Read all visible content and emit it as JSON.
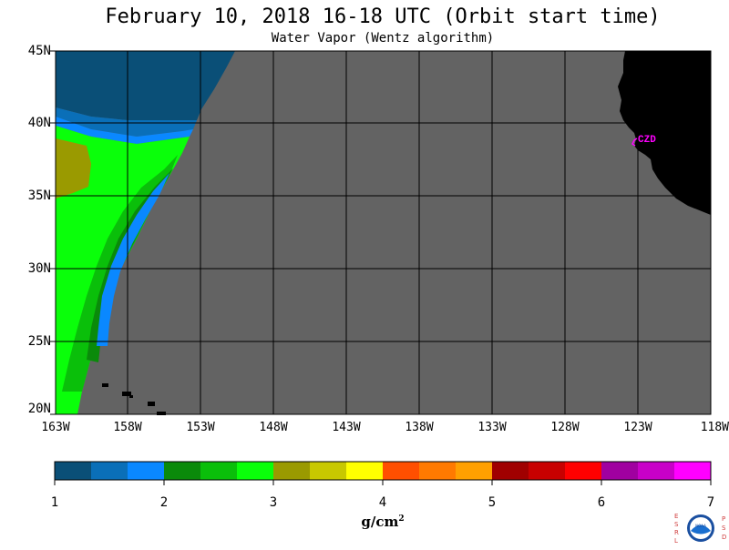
{
  "title": "February 10, 2018  16-18 UTC  (Orbit start time)",
  "subtitle": "Water Vapor (Wentz algorithm)",
  "map": {
    "lat_labels": [
      "45N",
      "40N",
      "35N",
      "30N",
      "25N",
      "20N"
    ],
    "lon_labels": [
      "163W",
      "158W",
      "153W",
      "148W",
      "143W",
      "138W",
      "133W",
      "128W",
      "123W",
      "118W"
    ],
    "station_label": "CZD",
    "colors": {
      "no_data": "#636363",
      "land": "#000000",
      "station": "#ff00ff",
      "grid": "#000000"
    }
  },
  "colorbar": {
    "ticks": [
      "1",
      "2",
      "3",
      "4",
      "5",
      "6",
      "7"
    ],
    "units_base": "g/cm",
    "units_exp": "2",
    "colors": [
      "#0a4f77",
      "#0a6fb8",
      "#0a88ff",
      "#0a8a0a",
      "#0abf0a",
      "#0aff0a",
      "#9a9a00",
      "#c8c800",
      "#ffff00",
      "#ff4f00",
      "#ff7a00",
      "#ffa000",
      "#a00000",
      "#c80000",
      "#ff0000",
      "#a000a0",
      "#c800c8",
      "#ff00ff"
    ]
  },
  "logo": {
    "left_letters": [
      "E",
      "S",
      "R",
      "L"
    ],
    "right_letters": [
      "P",
      "S",
      "D"
    ],
    "center_text": "NOAA"
  }
}
